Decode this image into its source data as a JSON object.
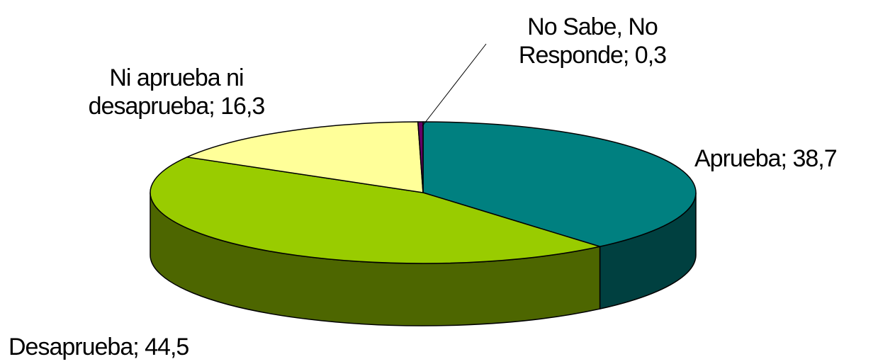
{
  "chart_data": {
    "type": "pie",
    "subtype": "3d-pie",
    "slices": [
      {
        "label": "Aprueba",
        "value": 38.7,
        "display": "Aprueba; 38,7",
        "color_top": "#008080",
        "color_side": "#004040"
      },
      {
        "label": "Desaprueba",
        "value": 44.5,
        "display": "Desaprueba; 44,5",
        "color_top": "#99CC00",
        "color_side": "#4D6600"
      },
      {
        "label": "Ni aprueba ni desaprueba",
        "value": 16.3,
        "display_lines": [
          "Ni aprueba ni",
          "desaprueba; 16,3"
        ],
        "color_top": "#FFFF99",
        "color_side": "#80804D"
      },
      {
        "label": "No Sabe, No Responde",
        "value": 0.3,
        "display_lines": [
          "No Sabe, No",
          "Responde; 0,3"
        ],
        "color_top": "#660066",
        "color_side": "#330033"
      }
    ],
    "legend": "none",
    "data_labels": "category; value"
  }
}
